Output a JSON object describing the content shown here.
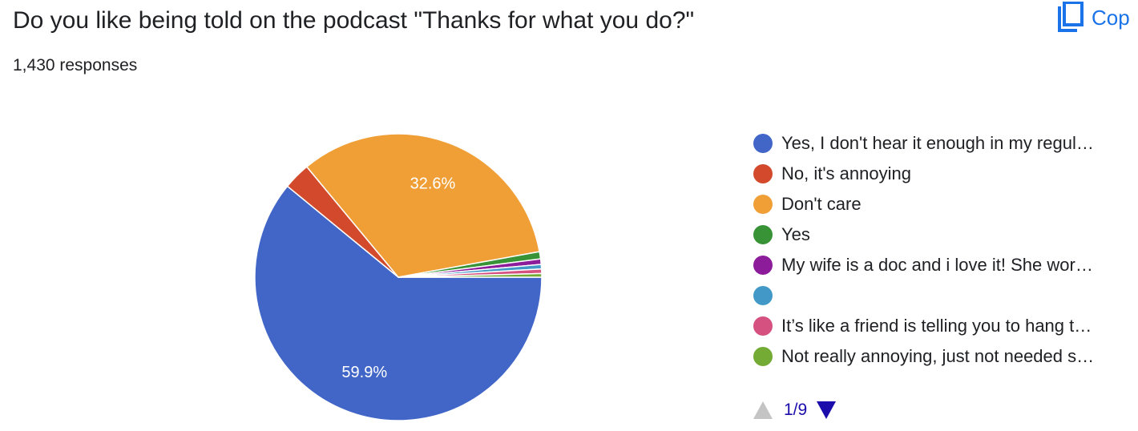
{
  "header": {
    "question": "Do you like being told on the podcast \"Thanks for what you do?\"",
    "responses": "1,430 responses",
    "copy_label": "Cop"
  },
  "chart_data": {
    "type": "pie",
    "slices": [
      {
        "label": "Yes, I don't hear it enough in my regul…",
        "value": 59.9,
        "color": "#4166c7",
        "data_label": "59.9%"
      },
      {
        "label": "No, it's annoying",
        "value": 3.0,
        "color": "#d24a2b",
        "data_label": ""
      },
      {
        "label": "Don't care",
        "value": 32.6,
        "color": "#f09f37",
        "data_label": "32.6%"
      },
      {
        "label": "Yes",
        "value": 0.8,
        "color": "#389336",
        "data_label": ""
      },
      {
        "label": "My wife is a doc and i love it! She wor…",
        "value": 0.6,
        "color": "#8c1c9a",
        "data_label": ""
      },
      {
        "label": "",
        "value": 0.5,
        "color": "#4299c8",
        "data_label": ""
      },
      {
        "label": "It’s like a friend is telling you to hang t…",
        "value": 0.5,
        "color": "#d55180",
        "data_label": ""
      },
      {
        "label": "Not really annoying, just not needed s…",
        "value": 0.4,
        "color": "#73ab35",
        "data_label": ""
      }
    ],
    "legend_position": "right"
  },
  "pager": {
    "label": "1/9"
  }
}
